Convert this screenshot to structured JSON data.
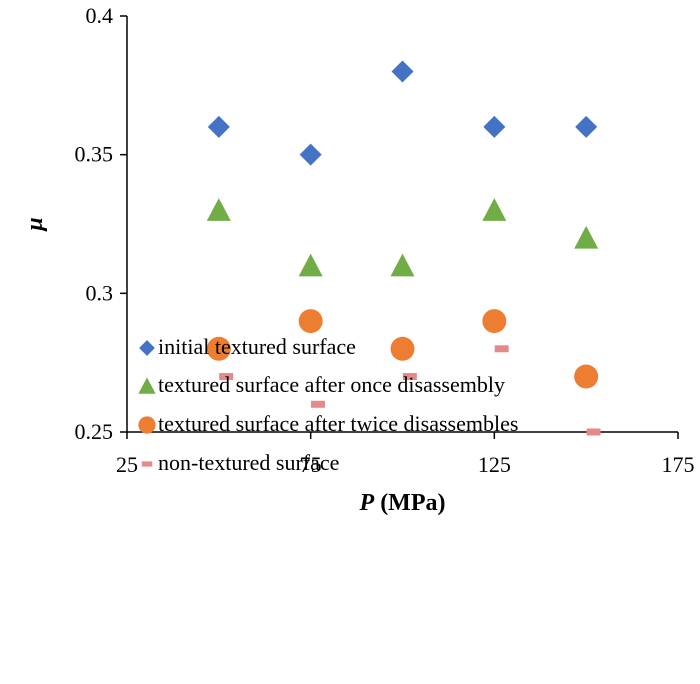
{
  "chart_data": {
    "type": "scatter",
    "xlabel_var": "P",
    "xlabel_unit": " (MPa)",
    "ylabel": "μ",
    "xlim": [
      25,
      175
    ],
    "ylim": [
      0.25,
      0.4
    ],
    "xticks": [
      25,
      75,
      125,
      175
    ],
    "yticks": [
      0.25,
      0.3,
      0.35,
      0.4
    ],
    "xtick_labels": [
      "25",
      "75",
      "125",
      "175"
    ],
    "ytick_labels": [
      "0.25",
      "0.3",
      "0.35",
      "0.4"
    ],
    "grid": false,
    "legend_position": "bottom",
    "series": [
      {
        "name": "initial textured surface",
        "marker": "diamond",
        "color": "#4472C4",
        "x": [
          50,
          75,
          100,
          125,
          150
        ],
        "y": [
          0.36,
          0.35,
          0.38,
          0.36,
          0.36
        ]
      },
      {
        "name": "textured surface after once disassembly",
        "marker": "triangle",
        "color": "#70AD47",
        "x": [
          50,
          75,
          100,
          125,
          150
        ],
        "y": [
          0.33,
          0.31,
          0.31,
          0.33,
          0.32
        ]
      },
      {
        "name": "textured surface after twice disassembles",
        "marker": "circle",
        "color": "#ED7D31",
        "x": [
          50,
          75,
          100,
          125,
          150
        ],
        "y": [
          0.28,
          0.29,
          0.28,
          0.29,
          0.27
        ]
      },
      {
        "name": "non-textured surface",
        "marker": "dash",
        "color": "#E48A8A",
        "x": [
          52,
          77,
          102,
          127,
          152
        ],
        "y": [
          0.27,
          0.26,
          0.27,
          0.28,
          0.25
        ]
      }
    ]
  }
}
